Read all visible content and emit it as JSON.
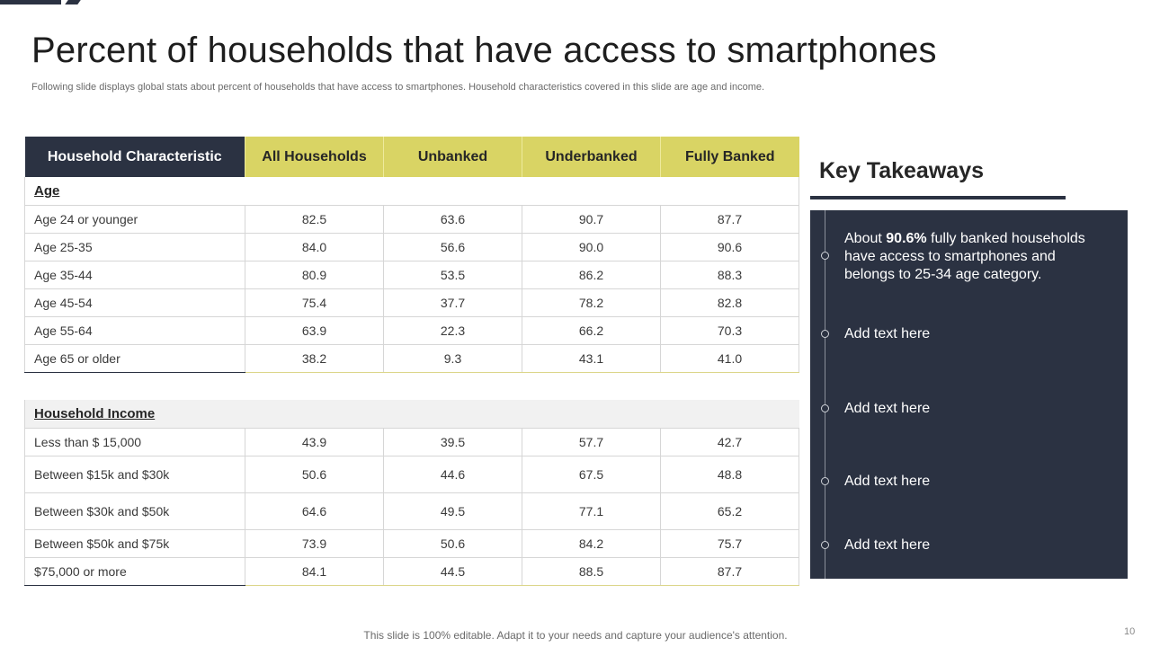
{
  "title": "Percent of households that have access to smartphones",
  "subtitle": "Following slide displays global stats about percent of households that have access to smartphones. Household characteristics covered in this slide are age and income.",
  "table": {
    "headers": [
      "Household Characteristic",
      "All Households",
      "Unbanked",
      "Underbanked",
      "Fully Banked"
    ],
    "age_section": "Age",
    "age_rows": [
      {
        "label": "Age 24 or younger",
        "values": [
          "82.5",
          "63.6",
          "90.7",
          "87.7"
        ]
      },
      {
        "label": "Age 25-35",
        "values": [
          "84.0",
          "56.6",
          "90.0",
          "90.6"
        ]
      },
      {
        "label": "Age 35-44",
        "values": [
          "80.9",
          "53.5",
          "86.2",
          "88.3"
        ]
      },
      {
        "label": "Age 45-54",
        "values": [
          "75.4",
          "37.7",
          "78.2",
          "82.8"
        ]
      },
      {
        "label": "Age 55-64",
        "values": [
          "63.9",
          "22.3",
          "66.2",
          "70.3"
        ]
      },
      {
        "label": "Age 65 or older",
        "values": [
          "38.2",
          "9.3",
          "43.1",
          "41.0"
        ]
      }
    ],
    "income_section": "Household Income",
    "income_rows": [
      {
        "label": "Less than $ 15,000",
        "values": [
          "43.9",
          "39.5",
          "57.7",
          "42.7"
        ]
      },
      {
        "label": "Between $15k and $30k",
        "values": [
          "50.6",
          "44.6",
          "67.5",
          "48.8"
        ]
      },
      {
        "label": "Between $30k and $50k",
        "values": [
          "64.6",
          "49.5",
          "77.1",
          "65.2"
        ]
      },
      {
        "label": "Between $50k and $75k",
        "values": [
          "73.9",
          "50.6",
          "84.2",
          "75.7"
        ]
      },
      {
        "label": "$75,000 or more",
        "values": [
          "84.1",
          "44.5",
          "88.5",
          "87.7"
        ]
      }
    ]
  },
  "takeaways": {
    "title": "Key Takeaways",
    "items": [
      {
        "prefix": "About ",
        "highlight": "90.6%",
        "suffix": " fully  banked households have access to smartphones and belongs to 25-34 age category."
      },
      {
        "text": "Add text here"
      },
      {
        "text": "Add text here"
      },
      {
        "text": "Add text here"
      },
      {
        "text": "Add text here"
      }
    ]
  },
  "footer": "This slide is 100% editable. Adapt it to your needs and capture your audience's attention.",
  "page_number": "10",
  "colors": {
    "navy": "#2b3242",
    "accent_yellow": "#d9d464"
  }
}
